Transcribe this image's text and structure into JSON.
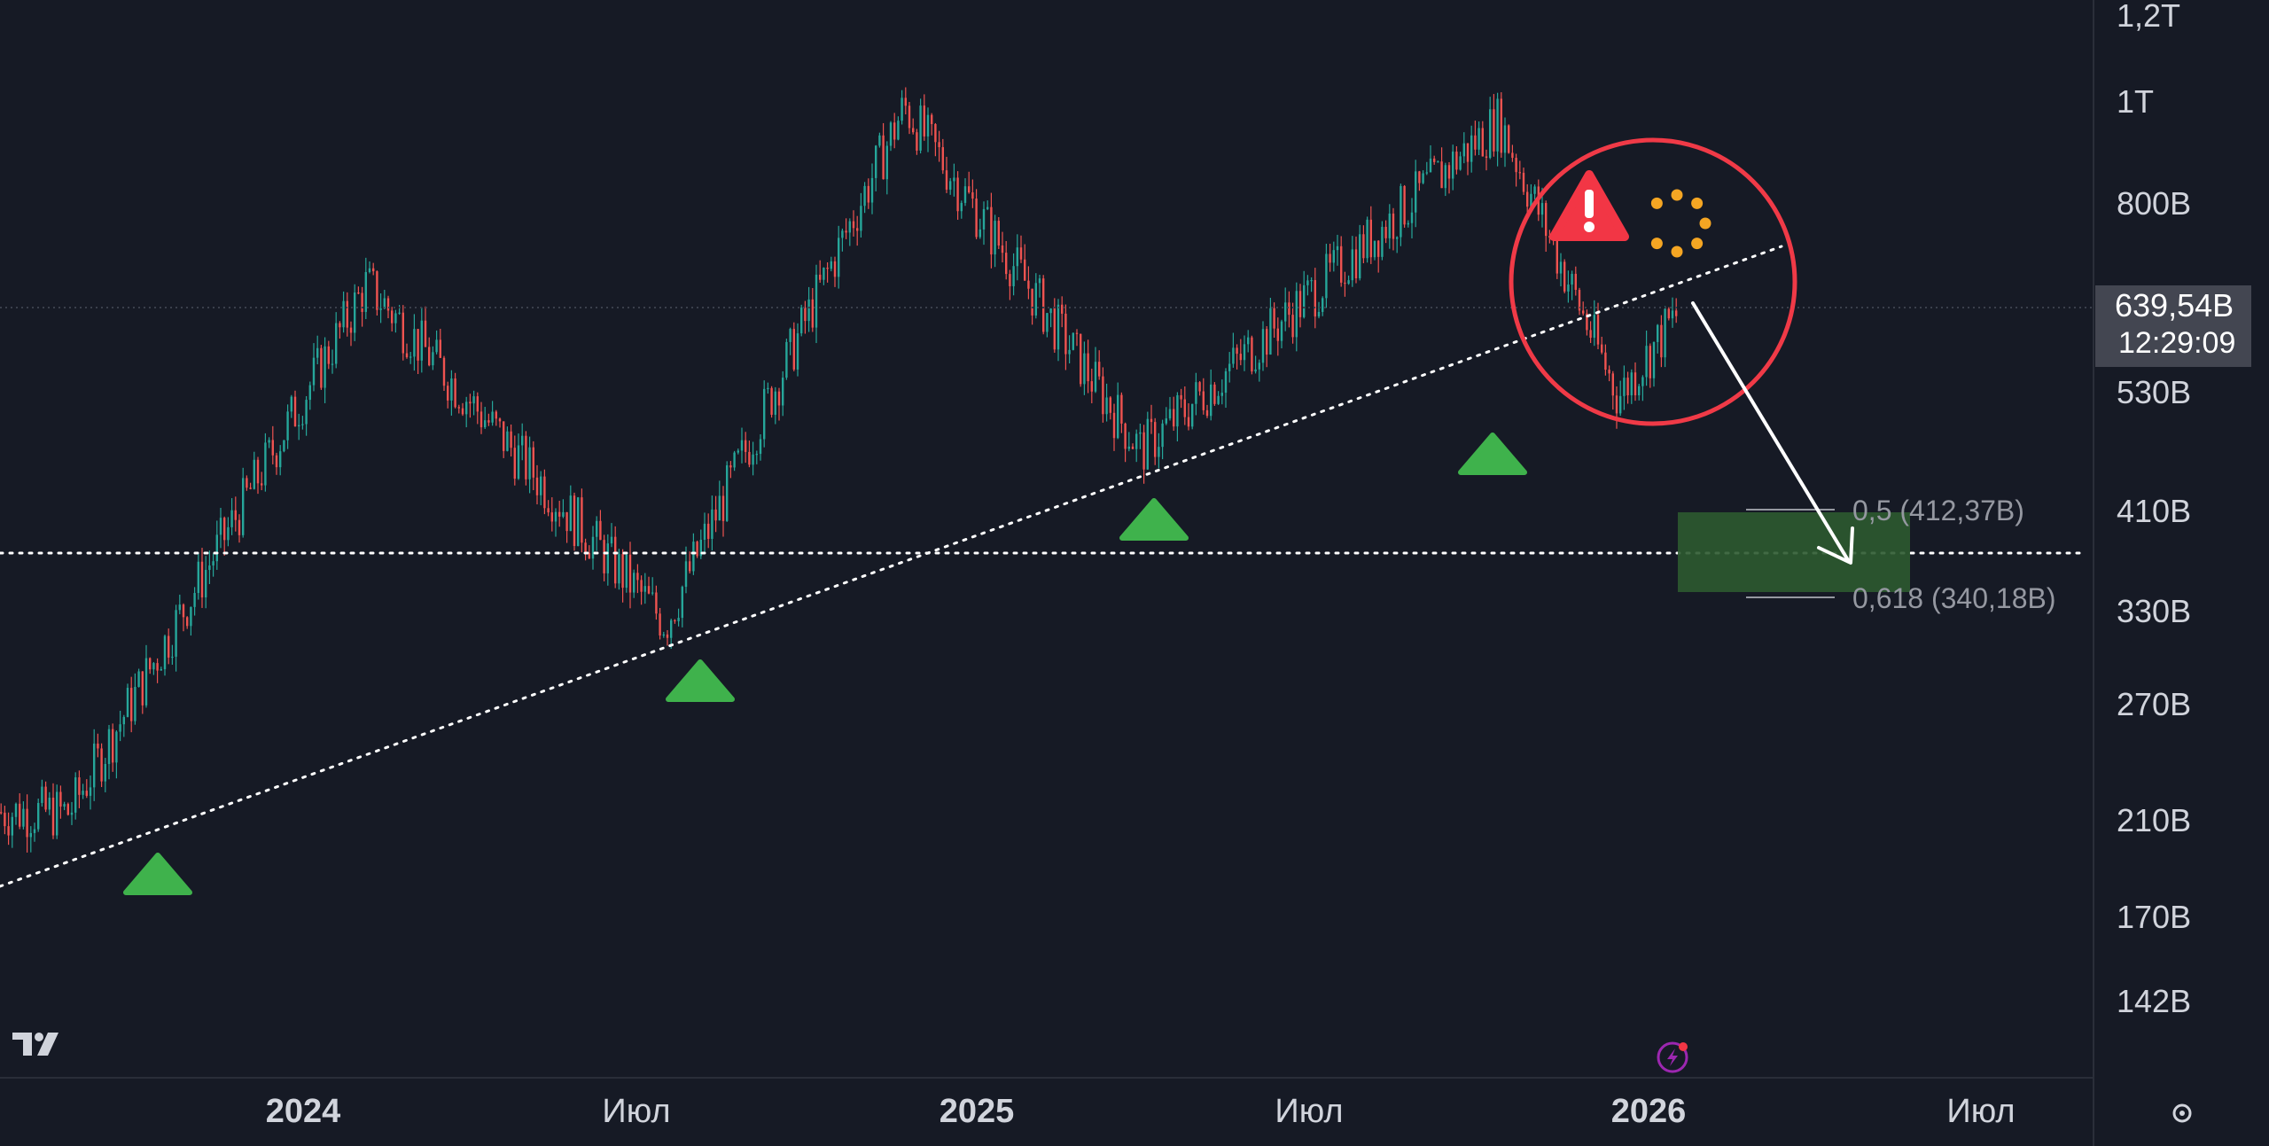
{
  "colors": {
    "background": "#161a25",
    "grid": "#2a2e39",
    "up": "#26a69a",
    "down": "#ef5350",
    "annotation_green": "#3fb24c",
    "zone_green": "#2c5a30",
    "circle_red": "#f03a47",
    "warning_red": "#f23645",
    "loader_orange": "#f5a623",
    "text": "#d1d4dc",
    "price_tag_bg": "#434651"
  },
  "axis": {
    "y_ticks": [
      "1,2T",
      "1T",
      "800B",
      "530B",
      "410B",
      "330B",
      "270B",
      "210B",
      "170B",
      "142B"
    ],
    "x_ticks": [
      {
        "label": "2024",
        "year": true
      },
      {
        "label": "Июл",
        "year": false
      },
      {
        "label": "2025",
        "year": true
      },
      {
        "label": "Июл",
        "year": false
      },
      {
        "label": "2026",
        "year": true
      },
      {
        "label": "Июл",
        "year": false
      }
    ],
    "settings_icon": "gear-icon"
  },
  "price_tag": {
    "value": "639,54B",
    "countdown": "12:29:09"
  },
  "fib": [
    {
      "label": "0,5 (412,37B)",
      "level": 412.37
    },
    {
      "label": "0,618 (340,18B)",
      "level": 340.18
    }
  ],
  "logo": "tradingview-logo",
  "chart_data": {
    "type": "candlestick",
    "title": "",
    "y_scale": "log",
    "ylim": [
      120,
      1250
    ],
    "x_range": [
      "2023-09",
      "2026-08"
    ],
    "key_prices": [
      {
        "date": "2023-10",
        "price": 210
      },
      {
        "date": "2024-03",
        "price": 680
      },
      {
        "date": "2024-08",
        "price": 320
      },
      {
        "date": "2024-12",
        "price": 1010
      },
      {
        "date": "2025-04",
        "price": 470
      },
      {
        "date": "2025-10",
        "price": 980
      },
      {
        "date": "2025-12",
        "price": 530
      },
      {
        "date": "2026-01",
        "price": 639.54
      }
    ],
    "support_markers": [
      "2023-11",
      "2024-08",
      "2025-04",
      "2025-10"
    ],
    "horizontal_level": 375,
    "trendline": {
      "from": {
        "date": "2023-09",
        "price": 165
      },
      "to": {
        "date": "2026-02",
        "price": 760
      }
    }
  }
}
